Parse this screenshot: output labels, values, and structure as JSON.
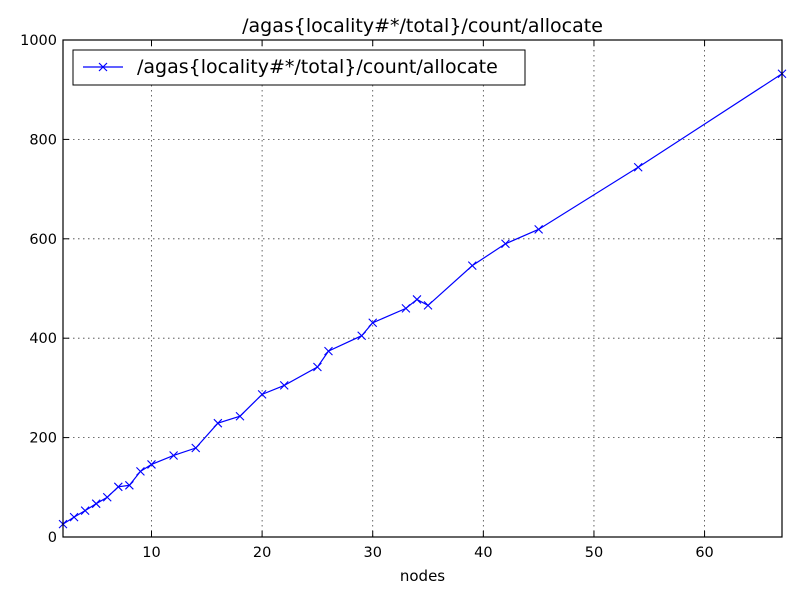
{
  "chart_data": {
    "type": "line",
    "title": "/agas{locality#*/total}/count/allocate",
    "xlabel": "nodes",
    "ylabel": "",
    "xlim": [
      2,
      67
    ],
    "ylim": [
      0,
      1000
    ],
    "x_ticks": [
      10,
      20,
      30,
      40,
      50,
      60
    ],
    "y_ticks": [
      0,
      200,
      400,
      600,
      800,
      1000
    ],
    "grid": true,
    "legend_position": "top-left",
    "series": [
      {
        "name": "/agas{locality#*/total}/count/allocate",
        "color": "#0000ff",
        "marker": "x",
        "x": [
          2,
          3,
          4,
          5,
          6,
          7,
          8,
          9,
          10,
          12,
          14,
          16,
          18,
          20,
          22,
          25,
          26,
          29,
          30,
          33,
          34,
          35,
          39,
          42,
          45,
          54,
          67
        ],
        "y": [
          26,
          40,
          53,
          67,
          80,
          101,
          104,
          132,
          146,
          164,
          179,
          229,
          243,
          287,
          305,
          342,
          374,
          405,
          431,
          460,
          478,
          466,
          546,
          590,
          619,
          744,
          932
        ]
      }
    ]
  }
}
